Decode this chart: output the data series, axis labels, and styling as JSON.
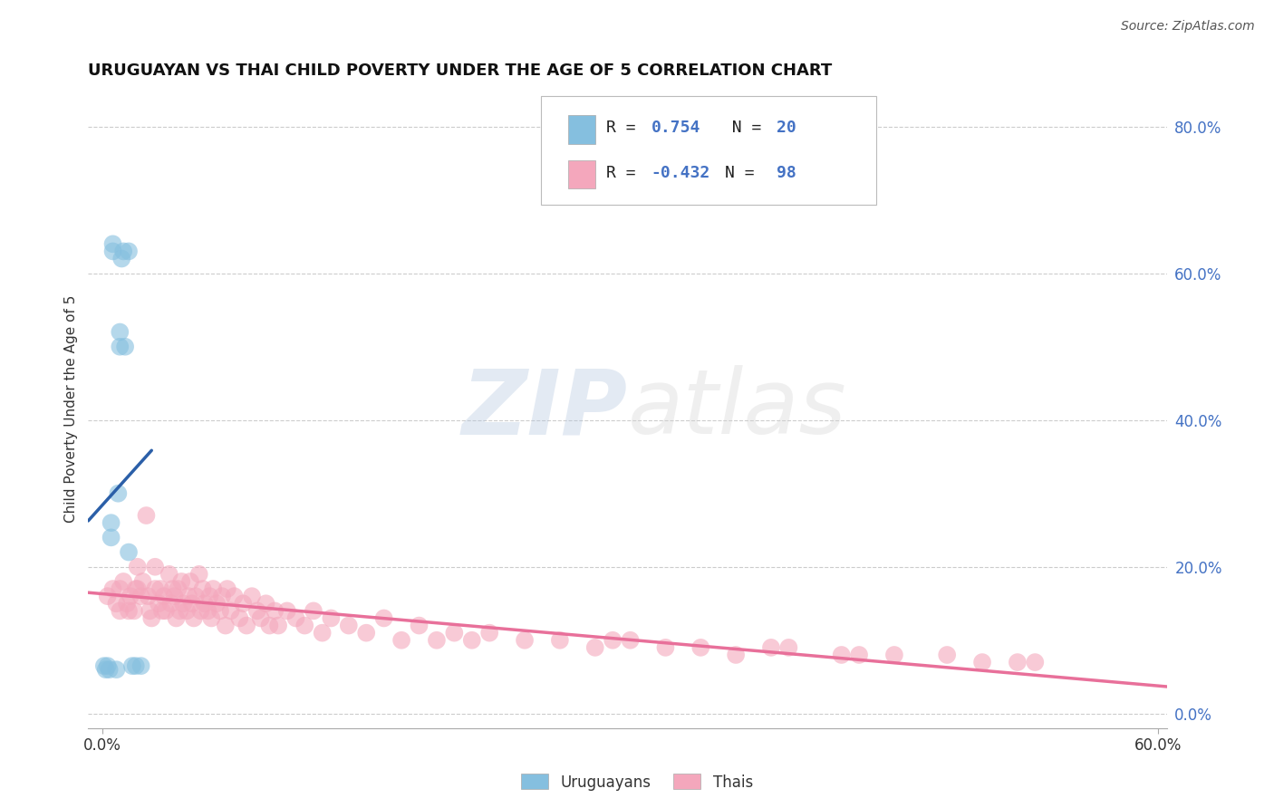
{
  "title": "URUGUAYAN VS THAI CHILD POVERTY UNDER THE AGE OF 5 CORRELATION CHART",
  "source": "Source: ZipAtlas.com",
  "ylabel": "Child Poverty Under the Age of 5",
  "xlim": [
    -0.008,
    0.605
  ],
  "ylim": [
    -0.02,
    0.85
  ],
  "x_ticks": [
    0.0,
    0.6
  ],
  "x_tick_labels": [
    "0.0%",
    "60.0%"
  ],
  "y_ticks_right": [
    0.0,
    0.2,
    0.4,
    0.6,
    0.8
  ],
  "y_tick_labels_right": [
    "0.0%",
    "20.0%",
    "40.0%",
    "60.0%",
    "80.0%"
  ],
  "legend_uruguayans": "Uruguayans",
  "legend_thais": "Thais",
  "blue_color": "#85bfdf",
  "pink_color": "#f4a7bc",
  "blue_line_color": "#2b5fa8",
  "pink_line_color": "#e8709a",
  "watermark_zip": "ZIP",
  "watermark_atlas": "atlas",
  "background_color": "#ffffff",
  "grid_color": "#cccccc",
  "uruguayan_x": [
    0.001,
    0.002,
    0.003,
    0.004,
    0.005,
    0.005,
    0.006,
    0.006,
    0.008,
    0.009,
    0.01,
    0.01,
    0.011,
    0.012,
    0.013,
    0.015,
    0.015,
    0.017,
    0.019,
    0.022
  ],
  "uruguayan_y": [
    0.065,
    0.06,
    0.065,
    0.06,
    0.24,
    0.26,
    0.63,
    0.64,
    0.06,
    0.3,
    0.5,
    0.52,
    0.62,
    0.63,
    0.5,
    0.63,
    0.22,
    0.065,
    0.065,
    0.065
  ],
  "thai_x": [
    0.003,
    0.006,
    0.008,
    0.01,
    0.01,
    0.012,
    0.014,
    0.015,
    0.016,
    0.018,
    0.019,
    0.02,
    0.02,
    0.022,
    0.023,
    0.025,
    0.026,
    0.027,
    0.028,
    0.03,
    0.03,
    0.032,
    0.033,
    0.034,
    0.035,
    0.036,
    0.038,
    0.039,
    0.04,
    0.041,
    0.042,
    0.043,
    0.044,
    0.045,
    0.046,
    0.048,
    0.049,
    0.05,
    0.051,
    0.052,
    0.053,
    0.055,
    0.056,
    0.057,
    0.058,
    0.06,
    0.061,
    0.062,
    0.063,
    0.065,
    0.067,
    0.068,
    0.07,
    0.071,
    0.073,
    0.075,
    0.078,
    0.08,
    0.082,
    0.085,
    0.088,
    0.09,
    0.093,
    0.095,
    0.098,
    0.1,
    0.105,
    0.11,
    0.115,
    0.12,
    0.125,
    0.13,
    0.14,
    0.15,
    0.16,
    0.17,
    0.18,
    0.19,
    0.2,
    0.21,
    0.22,
    0.24,
    0.26,
    0.28,
    0.3,
    0.32,
    0.34,
    0.36,
    0.39,
    0.42,
    0.45,
    0.48,
    0.5,
    0.53,
    0.43,
    0.52,
    0.38,
    0.29
  ],
  "thai_y": [
    0.16,
    0.17,
    0.15,
    0.17,
    0.14,
    0.18,
    0.15,
    0.14,
    0.16,
    0.14,
    0.17,
    0.2,
    0.17,
    0.16,
    0.18,
    0.27,
    0.16,
    0.14,
    0.13,
    0.2,
    0.17,
    0.15,
    0.17,
    0.14,
    0.16,
    0.14,
    0.19,
    0.15,
    0.17,
    0.16,
    0.13,
    0.17,
    0.14,
    0.18,
    0.15,
    0.14,
    0.16,
    0.18,
    0.15,
    0.13,
    0.16,
    0.19,
    0.14,
    0.17,
    0.15,
    0.14,
    0.16,
    0.13,
    0.17,
    0.15,
    0.14,
    0.16,
    0.12,
    0.17,
    0.14,
    0.16,
    0.13,
    0.15,
    0.12,
    0.16,
    0.14,
    0.13,
    0.15,
    0.12,
    0.14,
    0.12,
    0.14,
    0.13,
    0.12,
    0.14,
    0.11,
    0.13,
    0.12,
    0.11,
    0.13,
    0.1,
    0.12,
    0.1,
    0.11,
    0.1,
    0.11,
    0.1,
    0.1,
    0.09,
    0.1,
    0.09,
    0.09,
    0.08,
    0.09,
    0.08,
    0.08,
    0.08,
    0.07,
    0.07,
    0.08,
    0.07,
    0.09,
    0.1
  ]
}
